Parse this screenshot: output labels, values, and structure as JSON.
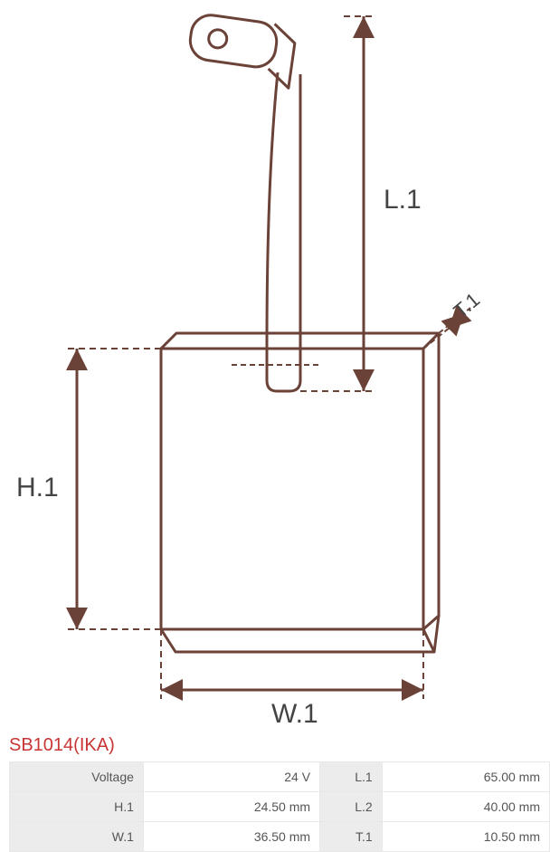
{
  "product": {
    "code": "SB1014(IKA)",
    "code_color": "#c93434"
  },
  "diagram": {
    "labels": {
      "L1": "L.1",
      "H1": "H.1",
      "W1": "W.1",
      "T1": "T.1"
    },
    "stroke_color": "#6b4238",
    "stroke_width": 3,
    "label_color": "#444444",
    "label_fontsize": 30,
    "t1_fontsize": 22
  },
  "specs": [
    {
      "label1": "Voltage",
      "value1": "24 V",
      "label2": "L.1",
      "value2": "65.00 mm"
    },
    {
      "label1": "H.1",
      "value1": "24.50 mm",
      "label2": "L.2",
      "value2": "40.00 mm"
    },
    {
      "label1": "W.1",
      "value1": "36.50 mm",
      "label2": "T.1",
      "value2": "10.50 mm"
    }
  ],
  "colors": {
    "label_bg": "#ececec",
    "value_bg": "#ffffff",
    "table_bg": "#e8e8e8",
    "text": "#555555"
  }
}
